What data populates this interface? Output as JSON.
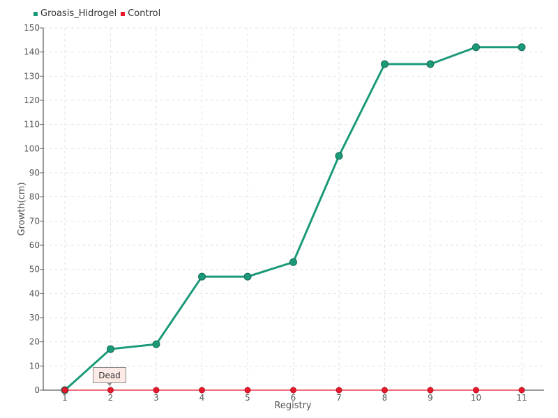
{
  "chart_data": {
    "type": "line",
    "xlabel": "Registry",
    "ylabel": "Growth(cm)",
    "categories": [
      "1",
      "2",
      "3",
      "4",
      "5",
      "6",
      "7",
      "8",
      "9",
      "10",
      "11"
    ],
    "ylim": [
      0,
      150
    ],
    "yticks": [
      0,
      10,
      20,
      30,
      40,
      50,
      60,
      70,
      80,
      90,
      100,
      110,
      120,
      130,
      140,
      150
    ],
    "grid": true,
    "legend_position": "top-left",
    "series": [
      {
        "name": "Groasis_Hidrogel",
        "color": "#1b9a7a",
        "values": [
          0,
          17,
          19,
          47,
          47,
          53,
          97,
          135,
          135,
          142,
          142
        ]
      },
      {
        "name": "Control",
        "color": "#e8192c",
        "values": [
          0,
          0,
          0,
          0,
          0,
          0,
          0,
          0,
          0,
          0,
          0
        ]
      }
    ],
    "annotations": [
      {
        "text": "Dead",
        "category": "2",
        "series": "Control"
      }
    ]
  }
}
